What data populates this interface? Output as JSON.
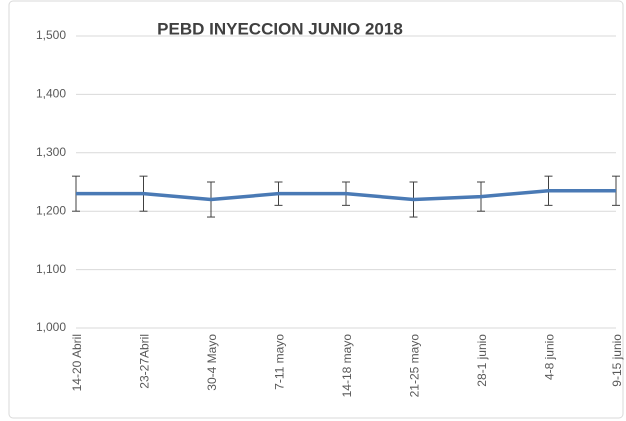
{
  "chart_data": {
    "type": "line",
    "title": "PEBD INYECCION JUNIO 2018",
    "categories": [
      "14-20 Abril",
      "23-27Abril",
      "30-4 Mayo",
      "7-11 mayo",
      "14-18 mayo",
      "21-25 mayo",
      "28-1 junio",
      "4-8 junio",
      "9-15 junio"
    ],
    "series": [
      {
        "name": "PEBD",
        "color": "#4a7ab5",
        "values": [
          1230,
          1230,
          1220,
          1230,
          1230,
          1220,
          1225,
          1235,
          1235
        ],
        "errors": [
          30,
          30,
          30,
          20,
          20,
          30,
          25,
          25,
          25
        ]
      }
    ],
    "ylim": [
      1000,
      1500
    ],
    "yticks": [
      {
        "value": 1000,
        "label": "1,000"
      },
      {
        "value": 1100,
        "label": "1,100"
      },
      {
        "value": 1200,
        "label": "1,200"
      },
      {
        "value": 1300,
        "label": "1,300"
      },
      {
        "value": 1400,
        "label": "1,400"
      },
      {
        "value": 1500,
        "label": "1,500"
      }
    ],
    "grid": true
  }
}
